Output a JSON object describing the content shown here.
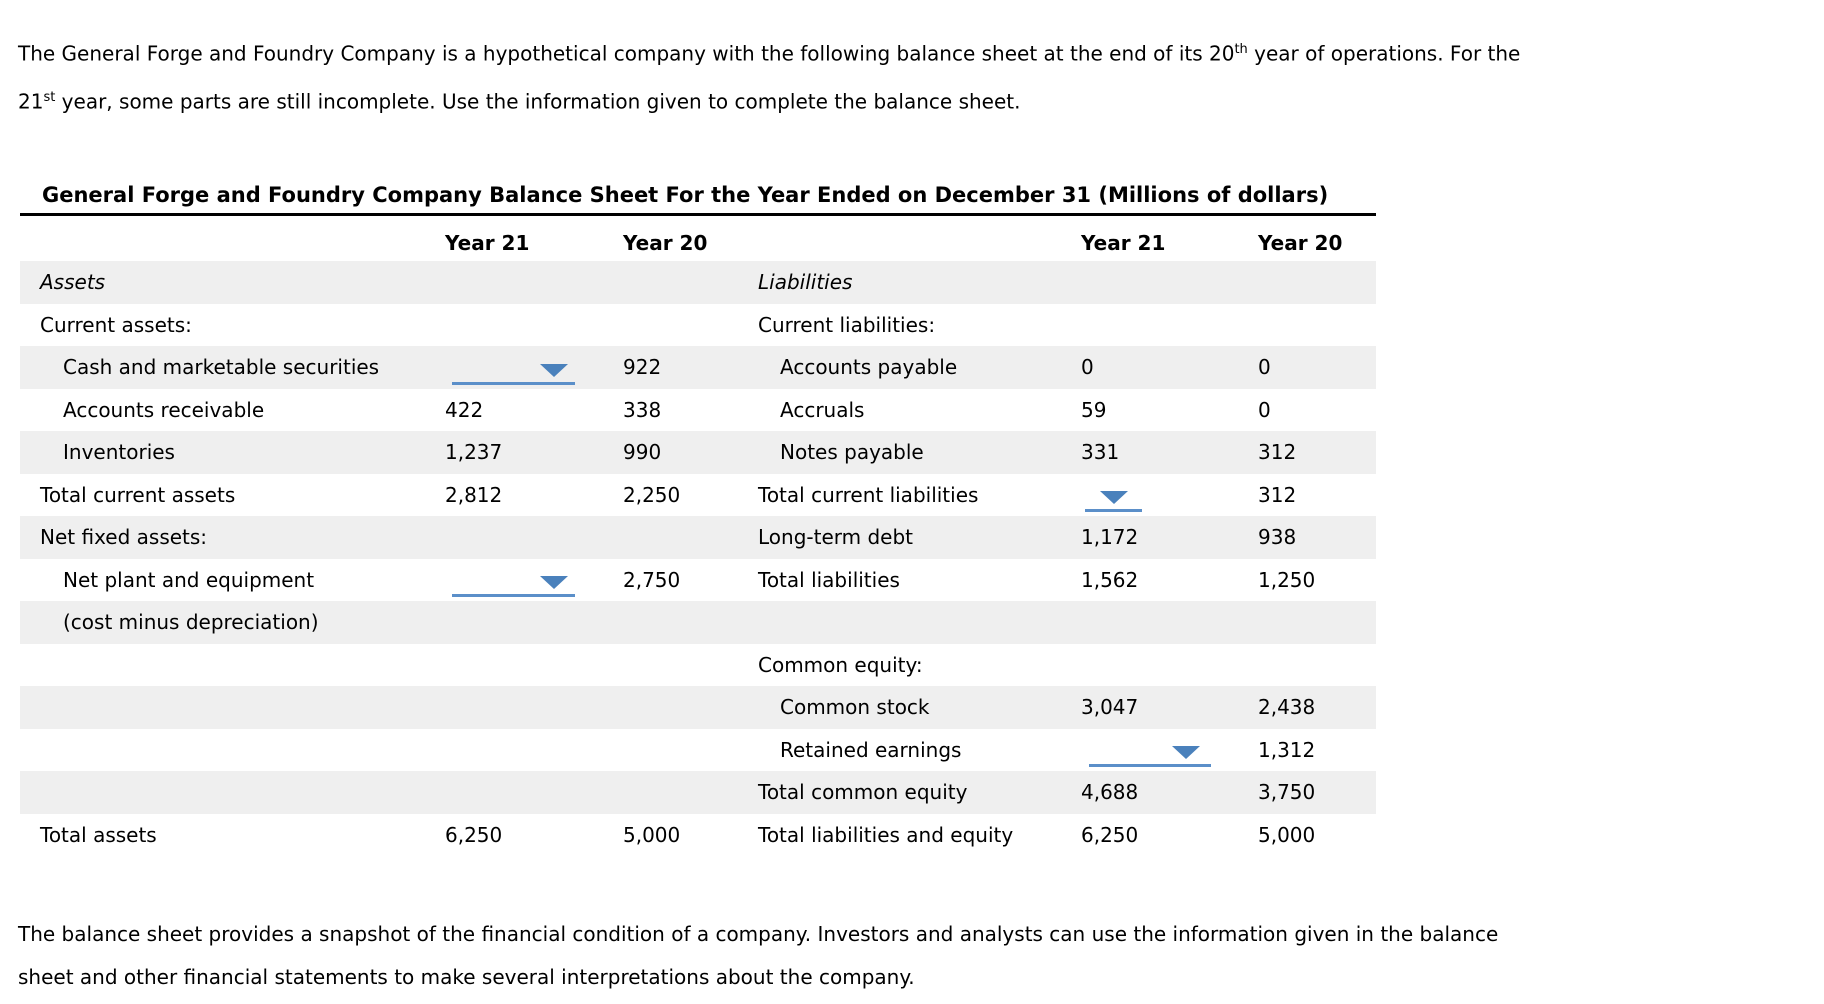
{
  "intro": {
    "line1_text": "The General Forge and Foundry Company is a hypothetical company with the following balance sheet at the end of its 20",
    "line1_sup": "th",
    "line1_rest": " year of operations. For the",
    "line2_text": "21",
    "line2_sup": "st",
    "line2_rest": " year, some parts are still incomplete. Use the information given to complete the balance sheet."
  },
  "sheet": {
    "title": "General Forge and Foundry Company Balance Sheet For the Year Ended on December 31 (Millions of dollars)",
    "col_headers": {
      "left_y21": "Year 21",
      "left_y20": "Year 20",
      "right_y21": "Year 21",
      "right_y20": "Year 20"
    },
    "rows": [
      {
        "left": {
          "label": "Assets"
        },
        "right": {
          "label": "Liabilities"
        }
      },
      {
        "left": {
          "label": "Current assets:"
        },
        "right": {
          "label": "Current liabilities:"
        }
      },
      {
        "left": {
          "label": "Cash and marketable securities",
          "y21": "",
          "y20": "922"
        },
        "right": {
          "label": "Accounts payable",
          "y21": "0",
          "y20": "0"
        }
      },
      {
        "left": {
          "label": "Accounts receivable",
          "y21": "422",
          "y20": "338"
        },
        "right": {
          "label": "Accruals",
          "y21": "59",
          "y20": "0"
        }
      },
      {
        "left": {
          "label": "Inventories",
          "y21": "1,237",
          "y20": "990"
        },
        "right": {
          "label": "Notes payable",
          "y21": "331",
          "y20": "312"
        }
      },
      {
        "left": {
          "label": "Total current assets",
          "y21": "2,812",
          "y20": "2,250"
        },
        "right": {
          "label": "Total current liabilities",
          "y21": "",
          "y20": "312"
        }
      },
      {
        "left": {
          "label": "Net fixed assets:"
        },
        "right": {
          "label": "Long-term debt",
          "y21": "1,172",
          "y20": "938"
        }
      },
      {
        "left": {
          "label": "Net plant and equipment",
          "y21": "",
          "y20": "2,750"
        },
        "right": {
          "label": "Total liabilities",
          "y21": "1,562",
          "y20": "1,250"
        }
      },
      {
        "left": {
          "label": "(cost minus depreciation)"
        },
        "right": {}
      },
      {
        "left": {},
        "right": {
          "label": "Common equity:"
        }
      },
      {
        "left": {},
        "right": {
          "label": "Common stock",
          "y21": "3,047",
          "y20": "2,438"
        }
      },
      {
        "left": {},
        "right": {
          "label": "Retained earnings",
          "y21": "",
          "y20": "1,312"
        }
      },
      {
        "left": {},
        "right": {
          "label": "Total common equity",
          "y21": "4,688",
          "y20": "3,750"
        }
      },
      {
        "left": {
          "label": "Total assets",
          "y21": "6,250",
          "y20": "5,000"
        },
        "right": {
          "label": "Total liabilities and equity",
          "y21": "6,250",
          "y20": "5,000"
        }
      }
    ]
  },
  "outro": {
    "line1": "The balance sheet provides a snapshot of the financial condition of a company. Investors and analysts can use the information given in the balance",
    "line2": "sheet and other financial statements to make several interpretations about the company."
  },
  "icons": {
    "dropdown_arrow": "▼"
  },
  "colors": {
    "dropdown_arrow_blue": "#4a81bc",
    "dropdown_underline_blue": "#5b8fc9",
    "row_stripe_gray": "#efefef",
    "title_rule_black": "#000000"
  }
}
